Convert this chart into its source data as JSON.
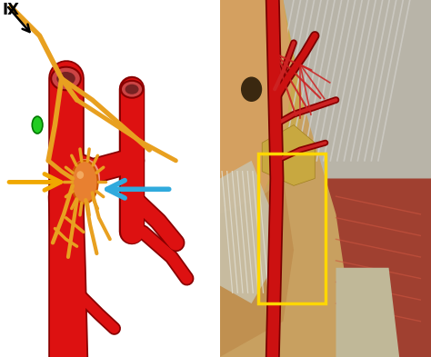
{
  "fig_width": 4.74,
  "fig_height": 3.93,
  "dpi": 100,
  "bg_color": "#ffffff",
  "nerve_color": "#E8A020",
  "nerve_dark": "#C07800",
  "artery_color": "#DD1111",
  "artery_dark": "#880000",
  "artery_light": "#EE4444",
  "tumor_color": "#E88030",
  "tumor_dark": "#CC5500",
  "green_dot_color": "#22CC22",
  "arrow_yellow_color": "#F0A800",
  "arrow_blue_color": "#30AADD",
  "yellow_rect_color": "#FFD700",
  "black_arrow_color": "#111111",
  "label_IX": "IX"
}
